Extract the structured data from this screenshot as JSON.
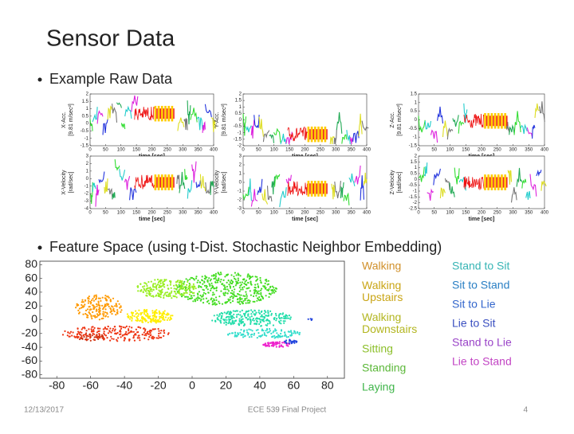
{
  "title": "Sensor Data",
  "bullets": [
    "Example Raw Data",
    "Feature Space (using t-Dist. Stochastic Neighbor Embedding)"
  ],
  "raw_plots": [
    {
      "ylabel": [
        "X-Acc.",
        "[9.81 m/sec²]"
      ],
      "xlabel": "time [sec]",
      "xlim": [
        0,
        400
      ],
      "xticks": [
        0,
        50,
        100,
        150,
        200,
        250,
        300,
        350,
        400
      ],
      "ylim": [
        -1.5,
        2
      ],
      "yticks": [
        -1.5,
        -1,
        -0.5,
        0,
        0.5,
        1,
        1.5,
        2
      ]
    },
    {
      "ylabel": [
        "Y-Acc.",
        "[9.81 m/sec²]"
      ],
      "xlabel": "time [sec]",
      "xlim": [
        0,
        400
      ],
      "xticks": [
        0,
        50,
        100,
        150,
        200,
        250,
        300,
        350,
        400
      ],
      "ylim": [
        -2,
        2
      ],
      "yticks": [
        -2,
        -1.5,
        -1,
        -0.5,
        0,
        0.5,
        1,
        1.5,
        2
      ]
    },
    {
      "ylabel": [
        "Z-Acc.",
        "[9.81 m/sec²]"
      ],
      "xlabel": "time [sec]",
      "xlim": [
        0,
        400
      ],
      "xticks": [
        0,
        50,
        100,
        150,
        200,
        250,
        300,
        350,
        400
      ],
      "ylim": [
        -1.5,
        1.5
      ],
      "yticks": [
        -1.5,
        -1,
        -0.5,
        0,
        0.5,
        1,
        1.5
      ]
    },
    {
      "ylabel": [
        "X-Velocity",
        "[rad/sec]"
      ],
      "xlabel": "time [sec]",
      "xlim": [
        0,
        400
      ],
      "xticks": [
        0,
        50,
        100,
        150,
        200,
        250,
        300,
        350,
        400
      ],
      "ylim": [
        -4,
        3
      ],
      "yticks": [
        -4,
        -3,
        -2,
        -1,
        0,
        1,
        2,
        3
      ]
    },
    {
      "ylabel": [
        "Y-Velocity",
        "[rad/sec]"
      ],
      "xlabel": "time [sec]",
      "xlim": [
        0,
        400
      ],
      "xticks": [
        0,
        50,
        100,
        150,
        200,
        250,
        300,
        350,
        400
      ],
      "ylim": [
        -3,
        3
      ],
      "yticks": [
        -3,
        -2,
        -1,
        0,
        1,
        2,
        3
      ]
    },
    {
      "ylabel": [
        "Z-Velocity",
        "[rad/sec]"
      ],
      "xlabel": "time [sec]",
      "xlim": [
        0,
        400
      ],
      "xticks": [
        0,
        50,
        100,
        150,
        200,
        250,
        300,
        350,
        400
      ],
      "ylim": [
        -2.5,
        2
      ],
      "yticks": [
        -2.5,
        -2,
        -1.5,
        -1,
        -0.5,
        0,
        0.5,
        1,
        1.5,
        2
      ]
    }
  ],
  "feature_plot": {
    "xlim": [
      -90,
      90
    ],
    "xticks": [
      -80,
      -60,
      -40,
      -20,
      0,
      20,
      40,
      60,
      80
    ],
    "ylim": [
      -85,
      85
    ],
    "yticks": [
      -80,
      -60,
      -40,
      -20,
      0,
      20,
      40,
      60,
      80
    ]
  },
  "legend": [
    [
      {
        "label": "Walking",
        "color": "#d0902a"
      },
      {
        "label": "Walking Upstairs",
        "color": "#c9a516"
      },
      {
        "label": "Walking Downstairs",
        "color": "#b3b620"
      },
      {
        "label": "Sitting",
        "color": "#8cbf2a"
      },
      {
        "label": "Standing",
        "color": "#5cb83a"
      },
      {
        "label": "Laying",
        "color": "#3fb54a"
      }
    ],
    [
      {
        "label": "Stand to Sit",
        "color": "#38b5b5"
      },
      {
        "label": "Sit to Stand",
        "color": "#2a7fc4"
      },
      {
        "label": "Sit to Lie",
        "color": "#3366cc"
      },
      {
        "label": "Lie to Sit",
        "color": "#3a4fc0"
      },
      {
        "label": "Stand to Lie",
        "color": "#9a44c8"
      },
      {
        "label": "Lie to Stand",
        "color": "#c244c4"
      }
    ]
  ],
  "footer": {
    "date": "12/13/2017",
    "project": "ECE 539 Final Project",
    "page": "4"
  }
}
